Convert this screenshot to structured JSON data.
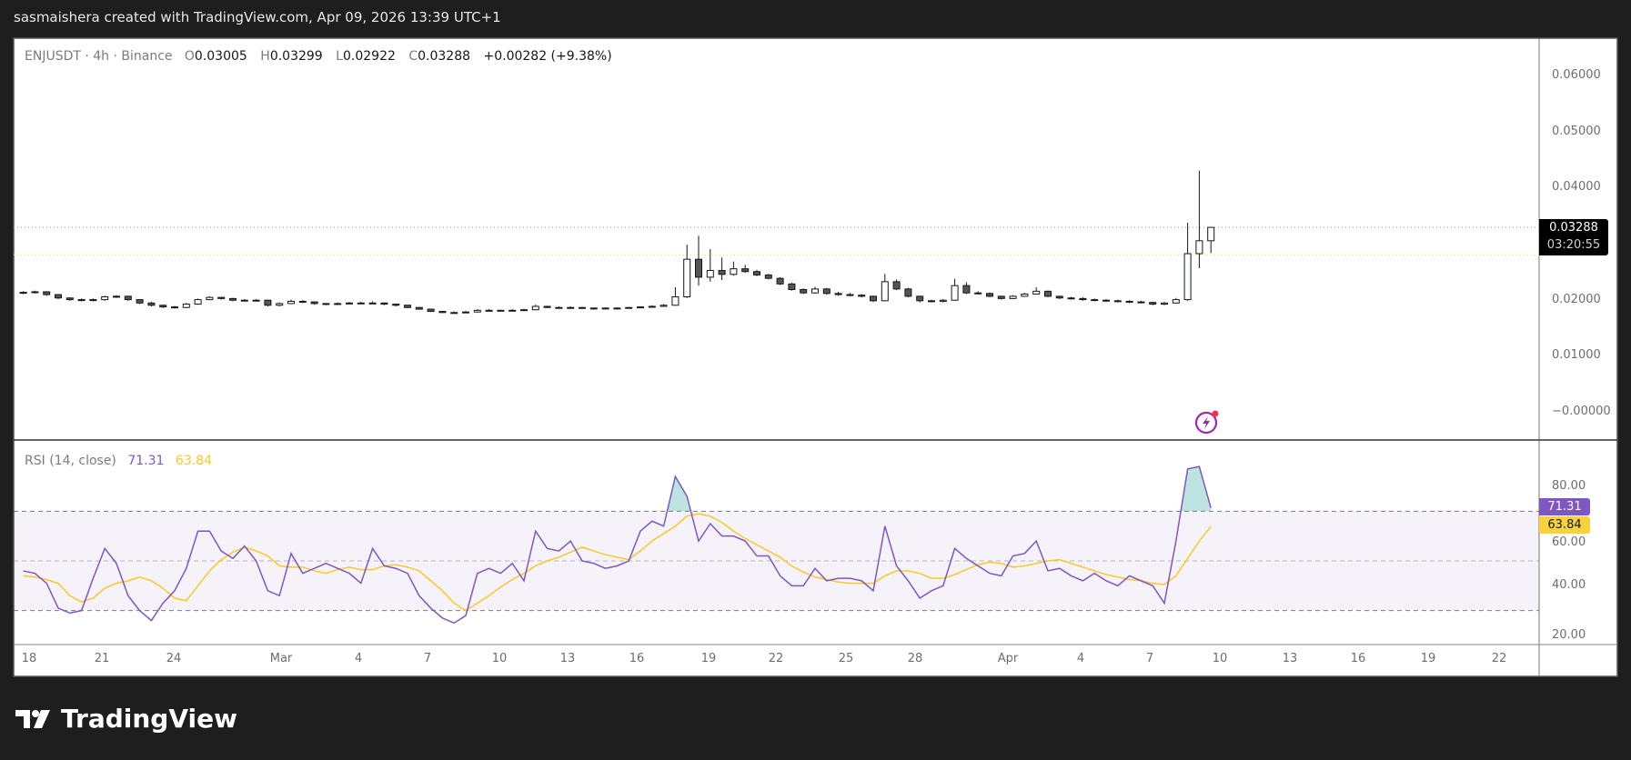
{
  "header": {
    "text": "sasmaishera created with TradingView.com, Apr 09, 2026 13:39 UTC+1"
  },
  "legend": {
    "symbol": "ENJUSDT · 4h · Binance",
    "o_label": "O",
    "o": "0.03005",
    "h_label": "H",
    "h": "0.03299",
    "l_label": "L",
    "l": "0.02922",
    "c_label": "C",
    "c": "0.03288",
    "change": "+0.00282 (+9.38%)"
  },
  "price_tag": {
    "value": "0.03288",
    "countdown": "03:20:55"
  },
  "rsi_legend": {
    "label": "RSI (14, close)",
    "rsi": "71.31",
    "ma": "63.84"
  },
  "footer": {
    "brand": "TradingView"
  },
  "colors": {
    "rsi": "#7e57c2",
    "rsi_ma": "#f7c928",
    "band": "#7e57c2",
    "overbought_fill": "#26a69a",
    "candle": "#131722",
    "alert_icon": "#9c27b0"
  },
  "icons": {
    "alert": "lightning-alert-icon",
    "logo": "tradingview-logo-icon"
  },
  "chart_data": [
    {
      "type": "candlestick",
      "title": "ENJUSDT · 4h · Binance",
      "y_ticks": [
        "0.06000",
        "0.05000",
        "0.04000",
        "0.02000",
        "0.01000",
        "−0.00000"
      ],
      "y_tick_values": [
        0.06,
        0.05,
        0.04,
        0.02,
        0.01,
        0
      ],
      "ylim": [
        -0.001,
        0.066
      ],
      "last_price": 0.03288,
      "reference_line": 0.028,
      "x_ticks": [
        "18",
        "21",
        "24",
        "Mar",
        "4",
        "7",
        "10",
        "13",
        "16",
        "19",
        "22",
        "25",
        "28",
        "Apr",
        "4",
        "7",
        "10",
        "13",
        "16",
        "19",
        "22"
      ],
      "grid": false,
      "candles_columns": [
        "time",
        "open",
        "high",
        "low",
        "close"
      ],
      "candles": [
        [
          "Feb 17 12:00",
          0.0212,
          0.0215,
          0.021,
          0.0213
        ],
        [
          "Feb 18 00:00",
          0.0213,
          0.0216,
          0.0211,
          0.0214
        ],
        [
          "Feb 18 12:00",
          0.0214,
          0.0215,
          0.0207,
          0.0209
        ],
        [
          "Feb 19 00:00",
          0.0209,
          0.021,
          0.0201,
          0.0203
        ],
        [
          "Feb 19 12:00",
          0.0203,
          0.0204,
          0.0198,
          0.02
        ],
        [
          "Feb 20 00:00",
          0.02,
          0.0202,
          0.0197,
          0.0199
        ],
        [
          "Feb 20 12:00",
          0.0199,
          0.0202,
          0.0197,
          0.02
        ],
        [
          "Feb 21 00:00",
          0.02,
          0.0207,
          0.0198,
          0.0205
        ],
        [
          "Feb 21 12:00",
          0.0205,
          0.0208,
          0.0203,
          0.0206
        ],
        [
          "Feb 22 00:00",
          0.0206,
          0.0207,
          0.0198,
          0.02
        ],
        [
          "Feb 22 12:00",
          0.02,
          0.0201,
          0.0192,
          0.0194
        ],
        [
          "Feb 23 00:00",
          0.0194,
          0.0196,
          0.0188,
          0.019
        ],
        [
          "Feb 23 12:00",
          0.019,
          0.0191,
          0.0185,
          0.0187
        ],
        [
          "Feb 24 00:00",
          0.0187,
          0.0189,
          0.0184,
          0.0186
        ],
        [
          "Feb 24 12:00",
          0.0186,
          0.0194,
          0.0185,
          0.0192
        ],
        [
          "Feb 25 00:00",
          0.0192,
          0.0202,
          0.0191,
          0.02
        ],
        [
          "Feb 25 12:00",
          0.02,
          0.0206,
          0.0199,
          0.0204
        ],
        [
          "Feb 26 00:00",
          0.0204,
          0.0205,
          0.02,
          0.0202
        ],
        [
          "Feb 26 12:00",
          0.0202,
          0.0203,
          0.0197,
          0.0199
        ],
        [
          "Feb 27 00:00",
          0.0199,
          0.0201,
          0.0197,
          0.0199
        ],
        [
          "Feb 27 12:00",
          0.0199,
          0.0201,
          0.0197,
          0.0199
        ],
        [
          "Feb 28 00:00",
          0.0199,
          0.02,
          0.0188,
          0.019
        ],
        [
          "Feb 28 12:00",
          0.019,
          0.0195,
          0.0188,
          0.0193
        ],
        [
          "Mar 1 00:00",
          0.0193,
          0.02,
          0.0192,
          0.0197
        ],
        [
          "Mar 1 12:00",
          0.0197,
          0.0199,
          0.0194,
          0.0196
        ],
        [
          "Mar 2 00:00",
          0.0196,
          0.0197,
          0.0191,
          0.0193
        ],
        [
          "Mar 2 12:00",
          0.0193,
          0.0194,
          0.019,
          0.0192
        ],
        [
          "Mar 3 00:00",
          0.0192,
          0.0195,
          0.0191,
          0.0193
        ],
        [
          "Mar 3 12:00",
          0.0193,
          0.0196,
          0.0192,
          0.0194
        ],
        [
          "Mar 4 00:00",
          0.0194,
          0.0196,
          0.0192,
          0.0194
        ],
        [
          "Mar 4 12:00",
          0.0194,
          0.0197,
          0.0192,
          0.0194
        ],
        [
          "Mar 5 00:00",
          0.0194,
          0.0195,
          0.019,
          0.0192
        ],
        [
          "Mar 5 12:00",
          0.0192,
          0.0193,
          0.0188,
          0.019
        ],
        [
          "Mar 6 00:00",
          0.019,
          0.0191,
          0.0185,
          0.0186
        ],
        [
          "Mar 6 12:00",
          0.0186,
          0.0187,
          0.0182,
          0.0183
        ],
        [
          "Mar 7 00:00",
          0.0183,
          0.0184,
          0.0178,
          0.0179
        ],
        [
          "Mar 7 12:00",
          0.0179,
          0.018,
          0.0176,
          0.0177
        ],
        [
          "Mar 8 00:00",
          0.0177,
          0.0179,
          0.0175,
          0.0177
        ],
        [
          "Mar 8 12:00",
          0.0177,
          0.018,
          0.0176,
          0.0178
        ],
        [
          "Mar 9 00:00",
          0.0178,
          0.0183,
          0.0177,
          0.0181
        ],
        [
          "Mar 9 12:00",
          0.0181,
          0.0183,
          0.0179,
          0.0181
        ],
        [
          "Mar 10 00:00",
          0.0181,
          0.0182,
          0.0179,
          0.0181
        ],
        [
          "Mar 10 12:00",
          0.0181,
          0.0183,
          0.0179,
          0.0181
        ],
        [
          "Mar 11 00:00",
          0.0181,
          0.0184,
          0.018,
          0.0182
        ],
        [
          "Mar 11 12:00",
          0.0182,
          0.0191,
          0.0181,
          0.0188
        ],
        [
          "Mar 12 00:00",
          0.0188,
          0.0189,
          0.0185,
          0.0186
        ],
        [
          "Mar 12 12:00",
          0.0186,
          0.0188,
          0.0184,
          0.0186
        ],
        [
          "Mar 13 00:00",
          0.0186,
          0.0188,
          0.0184,
          0.0186
        ],
        [
          "Mar 13 12:00",
          0.0186,
          0.0187,
          0.0183,
          0.0185
        ],
        [
          "Mar 14 00:00",
          0.0185,
          0.0186,
          0.0182,
          0.0184
        ],
        [
          "Mar 14 12:00",
          0.0184,
          0.0186,
          0.0183,
          0.0185
        ],
        [
          "Mar 15 00:00",
          0.0185,
          0.0186,
          0.0183,
          0.0185
        ],
        [
          "Mar 15 12:00",
          0.0185,
          0.0187,
          0.0184,
          0.0186
        ],
        [
          "Mar 16 00:00",
          0.0186,
          0.0188,
          0.0185,
          0.0187
        ],
        [
          "Mar 16 12:00",
          0.0187,
          0.019,
          0.0186,
          0.0188
        ],
        [
          "Mar 17 00:00",
          0.0188,
          0.0192,
          0.0187,
          0.019
        ],
        [
          "Mar 17 12:00",
          0.019,
          0.0222,
          0.0189,
          0.0205
        ],
        [
          "Mar 18 00:00",
          0.0205,
          0.0298,
          0.0203,
          0.0272
        ],
        [
          "Mar 18 12:00",
          0.0272,
          0.0314,
          0.0225,
          0.024
        ],
        [
          "Mar 19 00:00",
          0.024,
          0.029,
          0.0232,
          0.0252
        ],
        [
          "Mar 19 12:00",
          0.0252,
          0.0275,
          0.0235,
          0.0245
        ],
        [
          "Mar 20 00:00",
          0.0245,
          0.0268,
          0.0243,
          0.0255
        ],
        [
          "Mar 20 12:00",
          0.0255,
          0.0262,
          0.0248,
          0.025
        ],
        [
          "Mar 21 00:00",
          0.025,
          0.0253,
          0.0242,
          0.0244
        ],
        [
          "Mar 21 12:00",
          0.0244,
          0.0246,
          0.0236,
          0.0238
        ],
        [
          "Mar 22 00:00",
          0.0238,
          0.024,
          0.0226,
          0.0228
        ],
        [
          "Mar 22 12:00",
          0.0228,
          0.023,
          0.0216,
          0.0218
        ],
        [
          "Mar 23 00:00",
          0.0218,
          0.022,
          0.021,
          0.0212
        ],
        [
          "Mar 23 12:00",
          0.0212,
          0.0223,
          0.0211,
          0.0219
        ],
        [
          "Mar 24 00:00",
          0.0219,
          0.0221,
          0.0209,
          0.0211
        ],
        [
          "Mar 24 12:00",
          0.0211,
          0.0214,
          0.0207,
          0.0209
        ],
        [
          "Mar 25 00:00",
          0.0209,
          0.0212,
          0.0206,
          0.0208
        ],
        [
          "Mar 25 12:00",
          0.0208,
          0.021,
          0.0204,
          0.0206
        ],
        [
          "Mar 26 00:00",
          0.0206,
          0.0207,
          0.0196,
          0.0198
        ],
        [
          "Mar 26 12:00",
          0.0198,
          0.0246,
          0.0197,
          0.0232
        ],
        [
          "Mar 27 00:00",
          0.0232,
          0.0236,
          0.0217,
          0.0219
        ],
        [
          "Mar 27 12:00",
          0.0219,
          0.0221,
          0.0204,
          0.0206
        ],
        [
          "Mar 28 00:00",
          0.0206,
          0.0207,
          0.0195,
          0.0198
        ],
        [
          "Mar 28 12:00",
          0.0198,
          0.02,
          0.0195,
          0.0197
        ],
        [
          "Mar 29 00:00",
          0.0197,
          0.0201,
          0.0195,
          0.0199
        ],
        [
          "Mar 29 12:00",
          0.0199,
          0.0237,
          0.0198,
          0.0225
        ],
        [
          "Mar 30 00:00",
          0.0225,
          0.0231,
          0.021,
          0.0212
        ],
        [
          "Mar 30 12:00",
          0.0212,
          0.0215,
          0.0209,
          0.0211
        ],
        [
          "Mar 31 00:00",
          0.0211,
          0.0213,
          0.0204,
          0.0206
        ],
        [
          "Mar 31 12:00",
          0.0206,
          0.0207,
          0.02,
          0.0202
        ],
        [
          "Apr 1 00:00",
          0.0202,
          0.0208,
          0.0201,
          0.0206
        ],
        [
          "Apr 1 12:00",
          0.0206,
          0.0212,
          0.0205,
          0.021
        ],
        [
          "Apr 2 00:00",
          0.021,
          0.0222,
          0.0209,
          0.0215
        ],
        [
          "Apr 2 12:00",
          0.0215,
          0.0216,
          0.0204,
          0.0206
        ],
        [
          "Apr 3 00:00",
          0.0206,
          0.0207,
          0.0201,
          0.0203
        ],
        [
          "Apr 3 12:00",
          0.0203,
          0.0205,
          0.02,
          0.0202
        ],
        [
          "Apr 4 00:00",
          0.0202,
          0.0204,
          0.0198,
          0.02
        ],
        [
          "Apr 4 12:00",
          0.02,
          0.0202,
          0.0197,
          0.0199
        ],
        [
          "Apr 5 00:00",
          0.0199,
          0.0201,
          0.0196,
          0.0198
        ],
        [
          "Apr 5 12:00",
          0.0198,
          0.02,
          0.0195,
          0.0197
        ],
        [
          "Apr 6 00:00",
          0.0197,
          0.0199,
          0.0194,
          0.0196
        ],
        [
          "Apr 6 12:00",
          0.0196,
          0.0198,
          0.0193,
          0.0195
        ],
        [
          "Apr 7 00:00",
          0.0195,
          0.0196,
          0.019,
          0.0192
        ],
        [
          "Apr 7 12:00",
          0.0192,
          0.0196,
          0.019,
          0.0194
        ],
        [
          "Apr 8 00:00",
          0.0194,
          0.0203,
          0.0193,
          0.02
        ],
        [
          "Apr 8 12:00",
          0.02,
          0.0337,
          0.0198,
          0.0282
        ],
        [
          "Apr 9 00:00",
          0.0282,
          0.043,
          0.0256,
          0.0305
        ],
        [
          "Apr 9 12:00",
          0.0305,
          0.0324,
          0.0283,
          0.03288
        ]
      ]
    },
    {
      "type": "line",
      "title": "RSI (14, close)",
      "ylim": [
        16,
        96
      ],
      "y_ticks": [
        "80.00",
        "60.00",
        "40.00",
        "20.00"
      ],
      "y_tick_values": [
        80,
        60,
        40,
        20
      ],
      "bands": {
        "upper": 70,
        "middle": 50,
        "lower": 30
      },
      "series": [
        {
          "name": "RSI",
          "last": 71.31,
          "values": [
            46,
            45,
            41,
            31,
            29,
            30,
            43,
            55,
            49,
            36,
            30,
            26,
            33,
            38,
            47,
            62,
            62,
            54,
            51,
            56,
            50,
            38,
            36,
            53,
            45,
            47,
            49,
            47,
            45,
            41,
            55,
            48,
            47,
            45,
            36,
            31,
            27,
            25,
            28,
            45,
            47,
            45,
            49,
            42,
            62,
            55,
            54,
            58,
            50,
            49,
            47,
            48,
            50,
            62,
            66,
            64,
            84,
            76,
            58,
            65,
            60,
            60,
            58,
            52,
            52,
            44,
            40,
            40,
            47,
            42,
            43,
            43,
            42,
            38,
            64,
            48,
            42,
            35,
            38,
            40,
            55,
            51,
            48,
            45,
            44,
            52,
            53,
            58,
            46,
            47,
            44,
            42,
            45,
            42,
            40,
            44,
            42,
            40,
            33,
            58,
            87,
            88,
            71.31
          ]
        },
        {
          "name": "RSI-based MA",
          "last": 63.84,
          "values": [
            44,
            43.5,
            42.5,
            41,
            36,
            33.5,
            35,
            39,
            41,
            42,
            43.5,
            42,
            39,
            35,
            34,
            40,
            46,
            50.5,
            53.5,
            55.5,
            54,
            52,
            48,
            47.5,
            47.5,
            46,
            45,
            46.5,
            47.5,
            46.5,
            46.5,
            48,
            48.5,
            47.5,
            46,
            42,
            38,
            33,
            30,
            33,
            36,
            39.5,
            42.5,
            45,
            48,
            50,
            51.5,
            53.5,
            55.5,
            54,
            52.5,
            51.5,
            50.5,
            54,
            58,
            61,
            64,
            68,
            69,
            68,
            65.5,
            62,
            59,
            56.5,
            54,
            51.5,
            48,
            45.5,
            43.5,
            42.5,
            41.5,
            41,
            41,
            41,
            44,
            46,
            46,
            45,
            43,
            43,
            44.5,
            46.5,
            48.5,
            49.5,
            49,
            47.5,
            48,
            49,
            50,
            50.5,
            49,
            47.5,
            46,
            44.5,
            43.5,
            42.5,
            42,
            41,
            40.5,
            44,
            51,
            58,
            63.84
          ]
        }
      ]
    }
  ]
}
